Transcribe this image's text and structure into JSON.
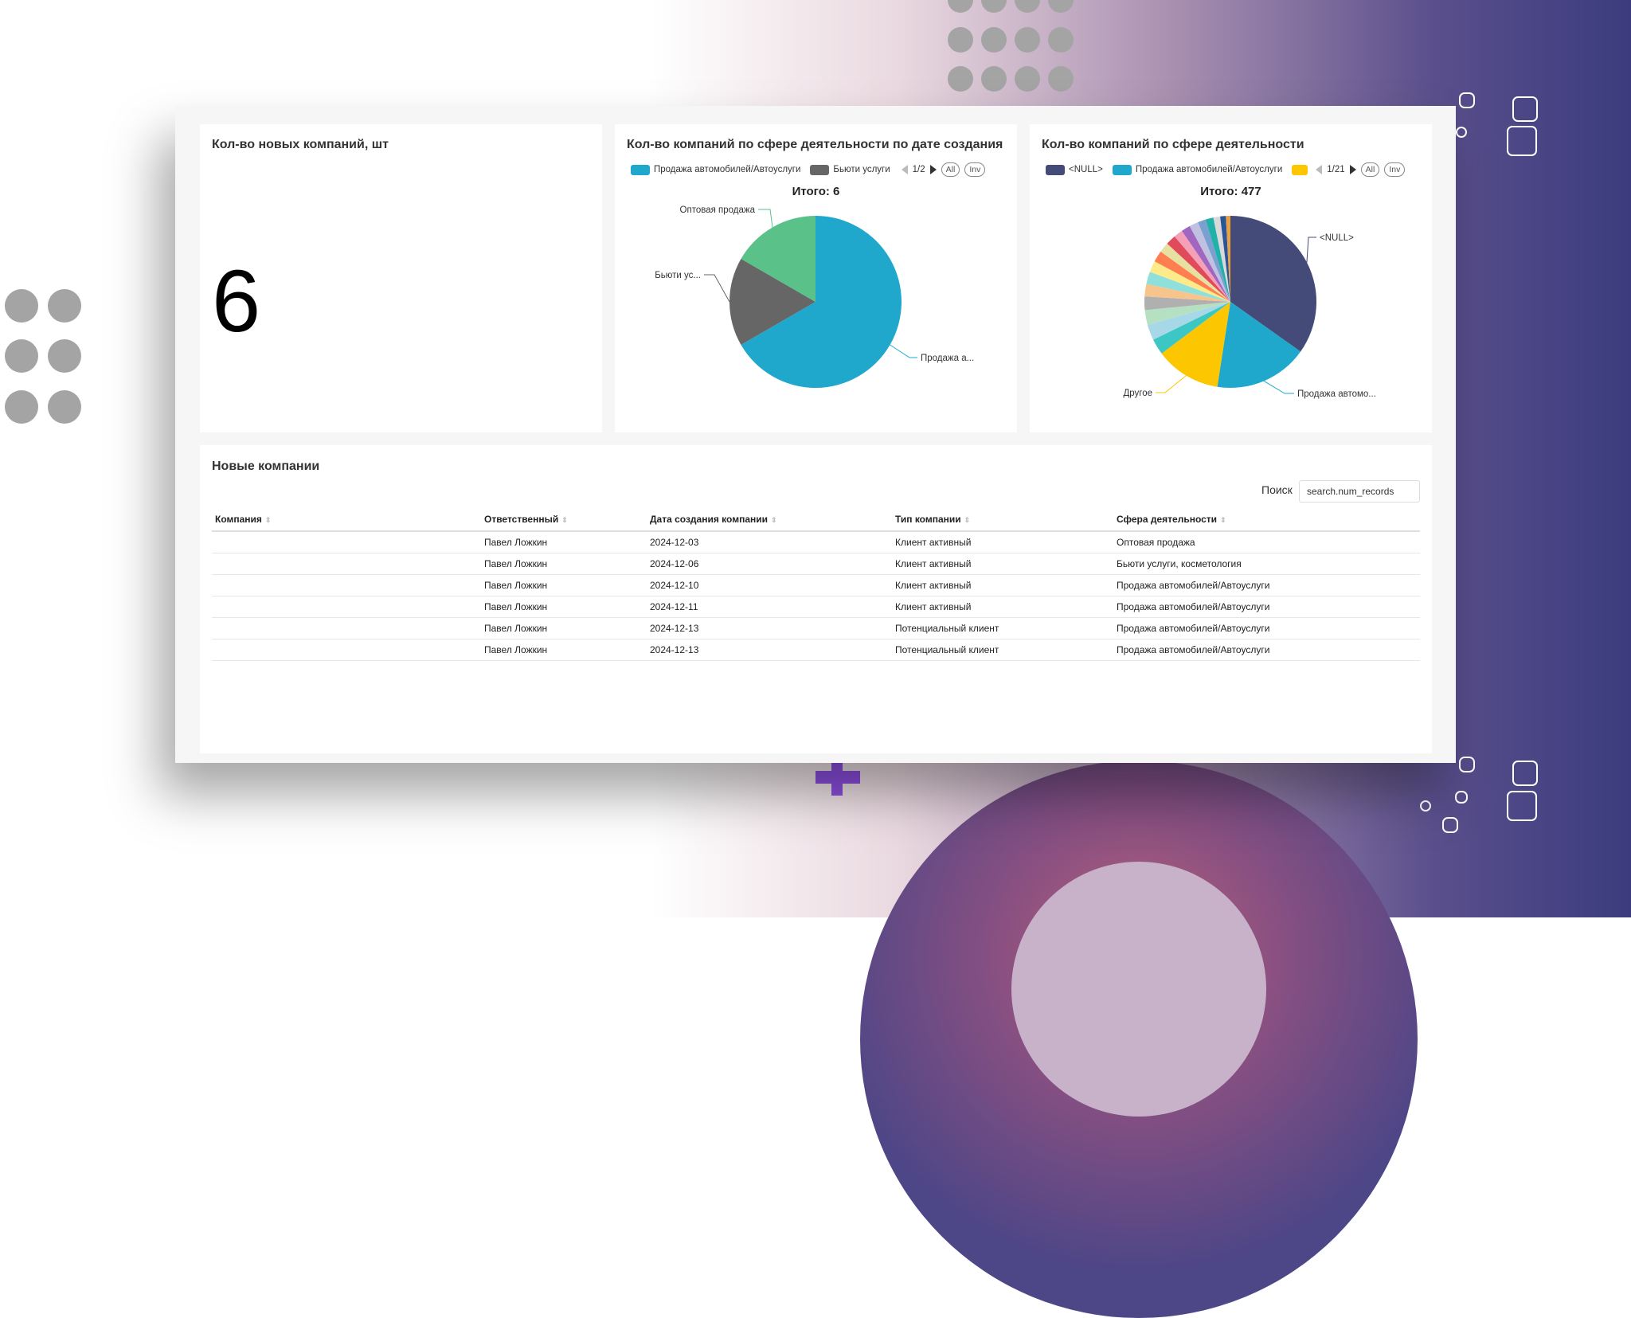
{
  "kpi": {
    "title": "Кол-во новых компаний, шт",
    "value": "6"
  },
  "pie1": {
    "title": "Кол-во компаний по сфере деятельности по дате создания",
    "legend": [
      {
        "label": "Продажа автомобилей/Автоуслуги",
        "color": "#1fa8cc"
      },
      {
        "label": "Бьюти услуги",
        "color": "#666666"
      }
    ],
    "page": "1/2",
    "all_label": "All",
    "inv_label": "Inv",
    "total": "Итого: 6"
  },
  "pie2": {
    "title": "Кол-во компаний по сфере деятельности",
    "legend": [
      {
        "label": "<NULL>",
        "color": "#444b79"
      },
      {
        "label": "Продажа автомобилей/Автоуслуги",
        "color": "#1fa8cc"
      },
      {
        "label": "",
        "color": "#fcc600"
      }
    ],
    "page": "1/21",
    "all_label": "All",
    "inv_label": "Inv",
    "total": "Итого: 477"
  },
  "chart_data": [
    {
      "type": "pie",
      "title": "Кол-во компаний по сфере деятельности по дате создания",
      "total": 6,
      "slices": [
        {
          "label": "Продажа а...",
          "value": 4,
          "color": "#1fa8cc"
        },
        {
          "label": "Бьюти ус...",
          "value": 1,
          "color": "#666666"
        },
        {
          "label": "Оптовая продажа",
          "value": 1,
          "color": "#5ac189"
        }
      ]
    },
    {
      "type": "pie",
      "title": "Кол-во компаний по сфере деятельности",
      "total": 477,
      "slices": [
        {
          "label": "<NULL>",
          "value": 164,
          "color": "#444b79"
        },
        {
          "label": "Продажа автомо...",
          "value": 83,
          "color": "#1fa8cc"
        },
        {
          "label": "Другое",
          "value": 58,
          "color": "#fcc600"
        },
        {
          "label": "",
          "value": 14,
          "color": "#3cc7c4"
        },
        {
          "label": "",
          "value": 14,
          "color": "#a7d8e8"
        },
        {
          "label": "",
          "value": 13,
          "color": "#b5e0c2"
        },
        {
          "label": "",
          "value": 12,
          "color": "#b0b0b0"
        },
        {
          "label": "",
          "value": 11,
          "color": "#f7c58c"
        },
        {
          "label": "",
          "value": 11,
          "color": "#8fe0da"
        },
        {
          "label": "",
          "value": 10,
          "color": "#fdeb8a"
        },
        {
          "label": "",
          "value": 10,
          "color": "#ff7f50"
        },
        {
          "label": "",
          "value": 9,
          "color": "#e8e0a0"
        },
        {
          "label": "",
          "value": 9,
          "color": "#e04a5a"
        },
        {
          "label": "",
          "value": 8,
          "color": "#f4a0b8"
        },
        {
          "label": "",
          "value": 8,
          "color": "#a066c0"
        },
        {
          "label": "",
          "value": 8,
          "color": "#c0c0e0"
        },
        {
          "label": "",
          "value": 7,
          "color": "#7aa0d0"
        },
        {
          "label": "",
          "value": 7,
          "color": "#20b2aa"
        },
        {
          "label": "",
          "value": 6,
          "color": "#d9d9d9"
        },
        {
          "label": "",
          "value": 5,
          "color": "#2a5599"
        },
        {
          "label": "",
          "value": 4,
          "color": "#e8a040"
        }
      ]
    }
  ],
  "table": {
    "title": "Новые компании",
    "search_label": "Поиск",
    "search_value": "search.num_records",
    "columns": [
      "Компания",
      "Ответственный",
      "Дата создания компании",
      "Тип компании",
      "Сфера деятельности"
    ],
    "rows": [
      [
        "",
        "Павел Ложкин",
        "2024-12-03",
        "Клиент активный",
        "Оптовая продажа"
      ],
      [
        "",
        "Павел Ложкин",
        "2024-12-06",
        "Клиент активный",
        "Бьюти услуги, косметология"
      ],
      [
        "",
        "Павел Ложкин",
        "2024-12-10",
        "Клиент активный",
        "Продажа автомобилей/Автоуслуги"
      ],
      [
        "",
        "Павел Ложкин",
        "2024-12-11",
        "Клиент активный",
        "Продажа автомобилей/Автоуслуги"
      ],
      [
        "",
        "Павел Ложкин",
        "2024-12-13",
        "Потенциальный клиент",
        "Продажа автомобилей/Автоуслуги"
      ],
      [
        "",
        "Павел Ложкин",
        "2024-12-13",
        "Потенциальный клиент",
        "Продажа автомобилей/Автоуслуги"
      ]
    ]
  }
}
